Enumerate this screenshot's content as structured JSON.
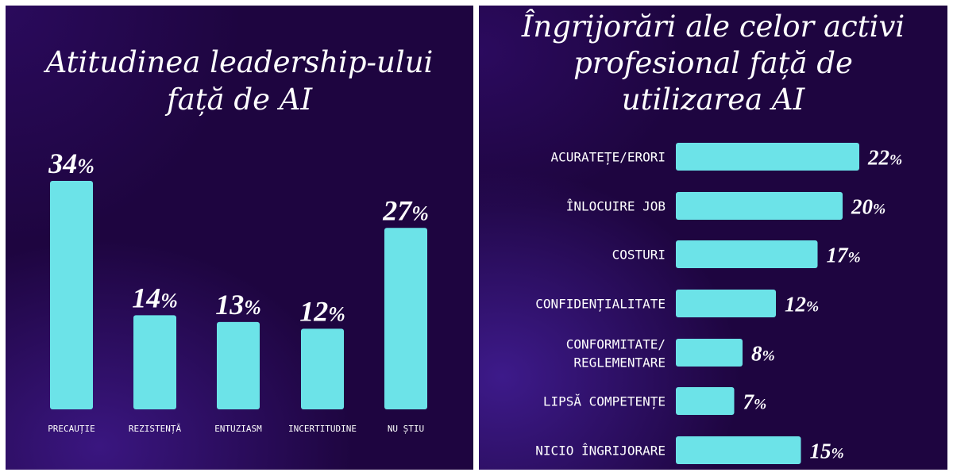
{
  "chart_data": [
    {
      "type": "bar",
      "title": "Atitudinea leadership-ului față de AI",
      "title_lines": [
        "Atitudinea leadership-ului",
        "față de AI"
      ],
      "categories": [
        "PRECAUȚIE",
        "REZISTENȚĂ",
        "ENTUZIASM",
        "INCERTITUDINE",
        "NU ȘTIU"
      ],
      "values": [
        34,
        14,
        13,
        12,
        27
      ],
      "value_labels": [
        "34%",
        "14%",
        "13%",
        "12%",
        "27%"
      ],
      "orientation": "vertical",
      "ylim": [
        0,
        34
      ],
      "grid": false,
      "bar_color": "#6ce3e8"
    },
    {
      "type": "bar",
      "title": "Îngrijorări ale celor activi profesional față de utilizarea AI",
      "title_lines": [
        "Îngrijorări ale celor activi",
        "profesional față de",
        "utilizarea AI"
      ],
      "categories": [
        "ACURATEȚE/ERORI",
        "ÎNLOCUIRE JOB",
        "COSTURI",
        "CONFIDENȚIALITATE",
        "CONFORMITATE/\nREGLEMENTARE",
        "LIPSĂ COMPETENȚE",
        "NICIO ÎNGRIJORARE"
      ],
      "values": [
        22,
        20,
        17,
        12,
        8,
        7,
        15
      ],
      "value_labels": [
        "22%",
        "20%",
        "17%",
        "12%",
        "8%",
        "7%",
        "15%"
      ],
      "orientation": "horizontal",
      "xlim": [
        0,
        22
      ],
      "grid": false,
      "bar_color": "#6ce3e8"
    }
  ]
}
